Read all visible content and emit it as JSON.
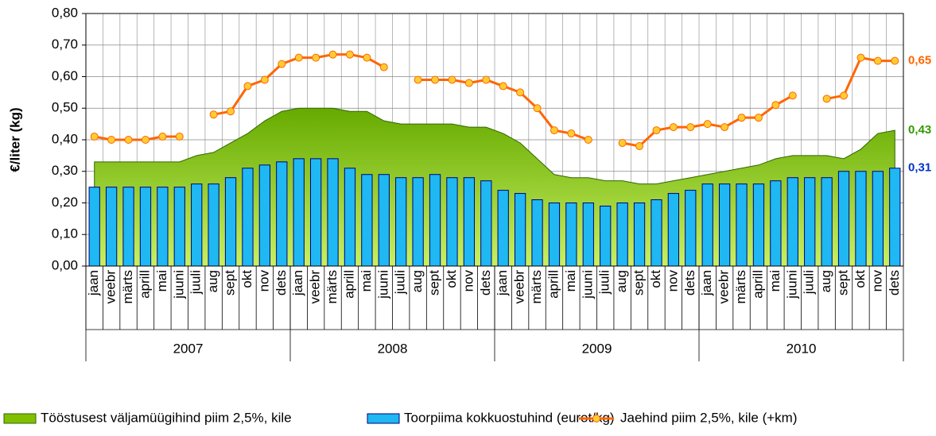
{
  "chart_data": {
    "type": "combo",
    "y_label": "€/liter (kg)",
    "categories": [
      "jaan",
      "veebr",
      "märts",
      "aprill",
      "mai",
      "juuni",
      "juuli",
      "aug",
      "sept",
      "okt",
      "nov",
      "dets",
      "jaan",
      "veebr",
      "märts",
      "aprill",
      "mai",
      "juuni",
      "juuli",
      "aug",
      "sept",
      "okt",
      "nov",
      "dets",
      "jaan",
      "veebr",
      "märts",
      "aprill",
      "mai",
      "juuni",
      "juuli",
      "aug",
      "sept",
      "okt",
      "nov",
      "dets",
      "jaan",
      "veebr",
      "märts",
      "aprill",
      "mai",
      "juuni",
      "juuli",
      "aug",
      "sept",
      "okt",
      "nov",
      "dets"
    ],
    "year_groups": [
      "2007",
      "2008",
      "2009",
      "2010"
    ],
    "ylim": [
      0,
      0.8
    ],
    "yticks": [
      {
        "value": 0,
        "label": "0,00"
      },
      {
        "value": 0.1,
        "label": "0,10"
      },
      {
        "value": 0.2,
        "label": "0,20"
      },
      {
        "value": 0.3,
        "label": "0,30"
      },
      {
        "value": 0.4,
        "label": "0,40"
      },
      {
        "value": 0.5,
        "label": "0,50"
      },
      {
        "value": 0.6,
        "label": "0,60"
      },
      {
        "value": 0.7,
        "label": "0,70"
      },
      {
        "value": 0.8,
        "label": "0,80"
      }
    ],
    "grid": true,
    "legend": "bottom",
    "series": [
      {
        "name": "Tööstusest väljamüügihind piim 2,5%, kile",
        "kind": "area",
        "color": "#80c000",
        "label_color": "#339900",
        "values": [
          0.33,
          0.33,
          0.33,
          0.33,
          0.33,
          0.33,
          0.35,
          0.36,
          0.39,
          0.42,
          0.46,
          0.49,
          0.5,
          0.5,
          0.5,
          0.49,
          0.49,
          0.46,
          0.45,
          0.45,
          0.45,
          0.45,
          0.44,
          0.44,
          0.42,
          0.39,
          0.34,
          0.29,
          0.28,
          0.28,
          0.27,
          0.27,
          0.26,
          0.26,
          0.27,
          0.28,
          0.29,
          0.3,
          0.31,
          0.32,
          0.34,
          0.35,
          0.35,
          0.35,
          0.34,
          0.37,
          0.42,
          0.43
        ],
        "value_labels": [
          null,
          null,
          null,
          null,
          null,
          null,
          null,
          null,
          null,
          null,
          null,
          null,
          null,
          null,
          null,
          null,
          null,
          null,
          null,
          null,
          null,
          null,
          null,
          null,
          null,
          null,
          null,
          null,
          null,
          null,
          null,
          null,
          null,
          null,
          null,
          null,
          null,
          null,
          null,
          null,
          null,
          null,
          null,
          null,
          null,
          null,
          null,
          "0,43"
        ]
      },
      {
        "name": "Toorpiima kokkuostuhind (eurot/kg)",
        "kind": "bar",
        "color": "#1fb8f2",
        "label_color": "#0033cc",
        "values": [
          0.25,
          0.25,
          0.25,
          0.25,
          0.25,
          0.25,
          0.26,
          0.26,
          0.28,
          0.31,
          0.32,
          0.33,
          0.34,
          0.34,
          0.34,
          0.31,
          0.29,
          0.29,
          0.28,
          0.28,
          0.29,
          0.28,
          0.28,
          0.27,
          0.24,
          0.23,
          0.21,
          0.2,
          0.2,
          0.2,
          0.19,
          0.2,
          0.2,
          0.21,
          0.23,
          0.24,
          0.26,
          0.26,
          0.26,
          0.26,
          0.27,
          0.28,
          0.28,
          0.28,
          0.3,
          0.3,
          0.3,
          0.31
        ],
        "value_labels": [
          null,
          null,
          null,
          null,
          null,
          null,
          null,
          null,
          null,
          null,
          null,
          null,
          null,
          null,
          null,
          null,
          null,
          null,
          null,
          null,
          null,
          null,
          null,
          null,
          null,
          null,
          null,
          null,
          null,
          null,
          null,
          null,
          null,
          null,
          null,
          null,
          null,
          null,
          null,
          null,
          null,
          null,
          null,
          null,
          null,
          null,
          null,
          "0,31"
        ]
      },
      {
        "name": "Jaehind piim 2,5%, kile (+km)",
        "kind": "line",
        "color": "#ff6600",
        "label_color": "#ff6600",
        "values": [
          0.41,
          0.4,
          0.4,
          0.4,
          0.41,
          0.41,
          null,
          0.48,
          0.49,
          0.57,
          0.59,
          0.64,
          0.66,
          0.66,
          0.67,
          0.67,
          0.66,
          0.63,
          null,
          0.59,
          0.59,
          0.59,
          0.58,
          0.59,
          0.57,
          0.55,
          0.5,
          0.43,
          0.42,
          0.4,
          null,
          0.39,
          0.38,
          0.43,
          0.44,
          0.44,
          0.45,
          0.44,
          0.47,
          0.47,
          0.51,
          0.54,
          null,
          0.53,
          0.54,
          0.66,
          0.65,
          0.65
        ],
        "value_labels": [
          null,
          null,
          null,
          null,
          null,
          null,
          null,
          null,
          null,
          null,
          null,
          null,
          null,
          null,
          null,
          null,
          null,
          null,
          null,
          null,
          null,
          null,
          null,
          null,
          null,
          null,
          null,
          null,
          null,
          null,
          null,
          null,
          null,
          null,
          null,
          null,
          null,
          null,
          null,
          null,
          null,
          null,
          null,
          null,
          null,
          null,
          null,
          "0,65"
        ]
      }
    ]
  }
}
